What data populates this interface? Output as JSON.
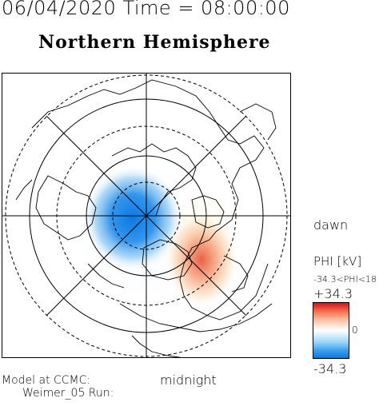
{
  "header": {
    "datetime": "06/04/2020 Time = 08:00:00",
    "hemisphere": "Northern Hemisphere"
  },
  "map": {
    "dawn_label": "dawn",
    "midnight_label": "midnight",
    "potential_colors": {
      "negative": "#0a78e3",
      "positive": "#e0301e",
      "neutral": "#ffffff"
    }
  },
  "colorbar": {
    "title": "PHI [kV]",
    "range_text": "-34.3<PHI<18",
    "max_label": "+34.3",
    "zero_label": "0",
    "min_label": "-34.3"
  },
  "footer": {
    "model_line": "Model at CCMC:",
    "run_line": "Weimer_05 Run:"
  }
}
